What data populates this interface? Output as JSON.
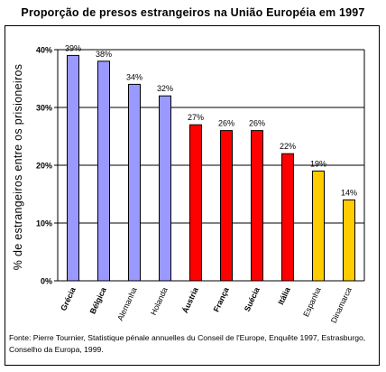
{
  "chart_data": {
    "type": "bar",
    "title": "Proporção de presos estrangeiros na União Européia em 1997",
    "ylabel": "% de estrangeiros entre os prisioneiros",
    "xlabel": "",
    "ylim": [
      0,
      40
    ],
    "yticks": [
      "0%",
      "10%",
      "20%",
      "30%",
      "40%"
    ],
    "grid": true,
    "categories": [
      "Grécia",
      "Bélgica",
      "Alemanha",
      "Holanda",
      "Áustria",
      "França",
      "Suécia",
      "Itália",
      "Espanha",
      "Dinamarca"
    ],
    "category_bold": [
      true,
      true,
      false,
      false,
      true,
      true,
      true,
      true,
      false,
      false
    ],
    "values": [
      39,
      38,
      34,
      32,
      27,
      26,
      26,
      22,
      19,
      14
    ],
    "data_labels": [
      "39%",
      "38%",
      "34%",
      "32%",
      "27%",
      "26%",
      "26%",
      "22%",
      "19%",
      "14%"
    ],
    "bar_colors": [
      "#9999ff",
      "#9999ff",
      "#9999ff",
      "#9999ff",
      "#ff0000",
      "#ff0000",
      "#ff0000",
      "#ff0000",
      "#ffcc00",
      "#ffcc00"
    ]
  },
  "source_note": "Fonte: Pierre Tournier, Statistique pénale annuelles du Conseil de l'Europe, Enquête 1997, Estrasburgo, Conselho da Europa, 1999."
}
